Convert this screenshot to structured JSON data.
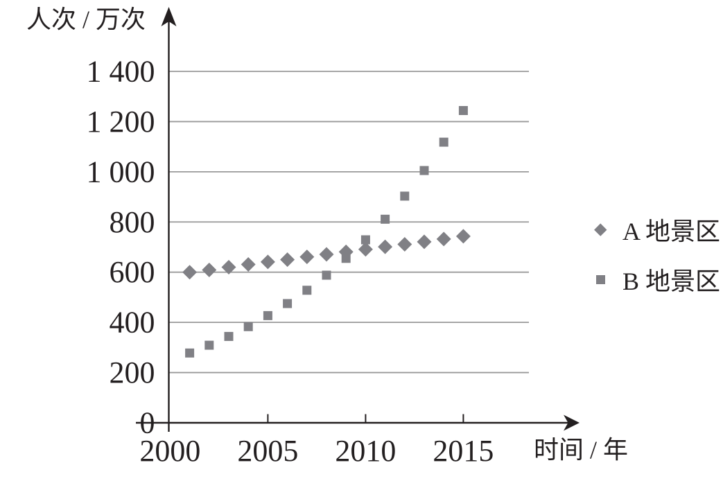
{
  "figure": {
    "background": "#ffffff",
    "marker_color": "#808085",
    "gridline_color": "#999999",
    "axis_color": "#231f20",
    "text_color": "#231f20"
  },
  "chart_data": {
    "type": "scatter",
    "title": "",
    "xlabel": "时间 / 年",
    "ylabel": "人次 / 万次",
    "x": [
      2001,
      2002,
      2003,
      2004,
      2005,
      2006,
      2007,
      2008,
      2009,
      2010,
      2011,
      2012,
      2013,
      2014,
      2015
    ],
    "series": [
      {
        "name": "A地景区",
        "marker": "diamond",
        "values": [
          600,
          609,
          620,
          631,
          641,
          650,
          661,
          671,
          681,
          691,
          701,
          711,
          721,
          732,
          743
        ]
      },
      {
        "name": "B地景区",
        "marker": "square",
        "values": [
          278,
          309,
          344,
          383,
          427,
          475,
          528,
          588,
          655,
          729,
          811,
          903,
          1005,
          1118,
          1244
        ]
      }
    ],
    "xlim": [
      2000,
      2016.5
    ],
    "ylim": [
      0,
      1450
    ],
    "x_ticks": [
      {
        "value": 2000,
        "label": "2000"
      },
      {
        "value": 2005,
        "label": "2005"
      },
      {
        "value": 2010,
        "label": "2010"
      },
      {
        "value": 2015,
        "label": "2015"
      }
    ],
    "y_ticks": [
      {
        "value": 0,
        "label": "0"
      },
      {
        "value": 200,
        "label": "200"
      },
      {
        "value": 400,
        "label": "400"
      },
      {
        "value": 600,
        "label": "600"
      },
      {
        "value": 800,
        "label": "800"
      },
      {
        "value": 1000,
        "label": "1 000"
      },
      {
        "value": 1200,
        "label": "1 200"
      },
      {
        "value": 1400,
        "label": "1 400"
      }
    ],
    "grid": true,
    "legend_position": "right"
  },
  "legend": {
    "items": [
      {
        "label": "A 地景区",
        "marker": "diamond"
      },
      {
        "label": "B 地景区",
        "marker": "square"
      }
    ]
  }
}
